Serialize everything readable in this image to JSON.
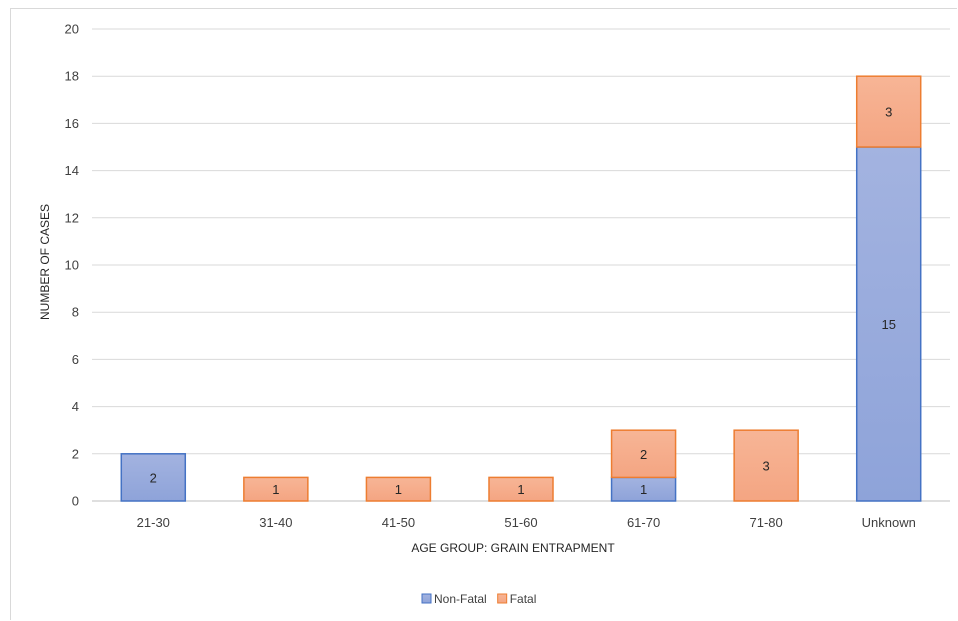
{
  "chart_data": {
    "type": "bar",
    "stacked": true,
    "title": "",
    "xlabel": "AGE GROUP: GRAIN ENTRAPMENT",
    "ylabel": "NUMBER OF CASES",
    "ylim": [
      0,
      20
    ],
    "yticks": [
      0,
      2,
      4,
      6,
      8,
      10,
      12,
      14,
      16,
      18,
      20
    ],
    "grid": true,
    "legend_position": "bottom",
    "categories": [
      "21-30",
      "31-40",
      "41-50",
      "51-60",
      "61-70",
      "71-80",
      "Unknown"
    ],
    "series": [
      {
        "name": "Non-Fatal",
        "values": [
          2,
          0,
          0,
          0,
          1,
          0,
          15
        ],
        "fill": "#a3b3e0",
        "fill_dark": "#8ea3d9",
        "stroke": "#4472c4"
      },
      {
        "name": "Fatal",
        "values": [
          0,
          1,
          1,
          1,
          2,
          3,
          3
        ],
        "fill": "#f7b596",
        "fill_dark": "#f4a582",
        "stroke": "#ed7d31"
      }
    ],
    "colors": {
      "gridline": "#d9d9d9",
      "axis": "#bfbfbf"
    }
  }
}
